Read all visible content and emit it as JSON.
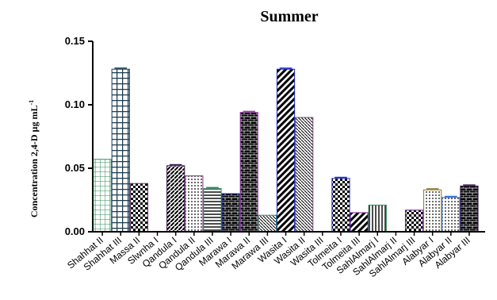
{
  "chart_data": {
    "type": "bar",
    "title": "Summer",
    "ylabel": "Concentration 2,4-D µg mL",
    "ylabel_sup": "-1",
    "xlabel": "",
    "ylim": [
      0,
      0.15
    ],
    "yticks": [
      "0.00",
      "0.05",
      "0.10",
      "0.15"
    ],
    "ytick_values": [
      0,
      0.05,
      0.1,
      0.15
    ],
    "categories": [
      "Shahhat II",
      "Shahhat III",
      "Massa II",
      "Slwnha I",
      "Qandula I",
      "Qandula II",
      "Qandula III",
      "Marawa I",
      "Marawa II",
      "Marawa III",
      "Wasita I",
      "Wasita II",
      "Wasita III",
      "Tolmeita I",
      "Tolmeita III",
      "SahlAlmarj I",
      "SahlAlmarj II",
      "SahlAlmarj III",
      "Alabyar I",
      "Alabyar II",
      "Alabyar III"
    ],
    "values": [
      0.057,
      0.128,
      0.038,
      0,
      0.052,
      0.044,
      0.034,
      0.03,
      0.094,
      0.013,
      0.128,
      0.09,
      0,
      0.042,
      0.015,
      0.021,
      0,
      0.017,
      0.033,
      0.027,
      0.036
    ],
    "errors": [
      0,
      0.0008,
      0,
      0,
      0.0008,
      0,
      0.0008,
      0,
      0.0008,
      0,
      0.0008,
      0,
      0,
      0.0008,
      0,
      0,
      0,
      0,
      0.0008,
      0.0008,
      0.0008
    ],
    "colors": [
      "#2e8b57",
      "#1a3a4f",
      "#6b2d6b",
      "#000000",
      "#3b1650",
      "#7a3a7a",
      "#2e8b57",
      "#1d28c8",
      "#9b3cae",
      "#2e8b57",
      "#1d28c8",
      "#7a4a7a",
      "#000000",
      "#1d28c8",
      "#6b1a8a",
      "#2e8b57",
      "#000000",
      "#6b1a8a",
      "#8a7a2a",
      "#2c6ed8",
      "#3b1650"
    ],
    "patterns": [
      "grid",
      "bold-grid",
      "checker",
      "none",
      "diag-up",
      "dots",
      "hlines",
      "bricks",
      "bricks",
      "diag-thin",
      "diag-bold",
      "diag-thin",
      "none",
      "checker",
      "diag-bold",
      "vlines",
      "none",
      "checker",
      "dots",
      "dots",
      "bricks"
    ]
  }
}
